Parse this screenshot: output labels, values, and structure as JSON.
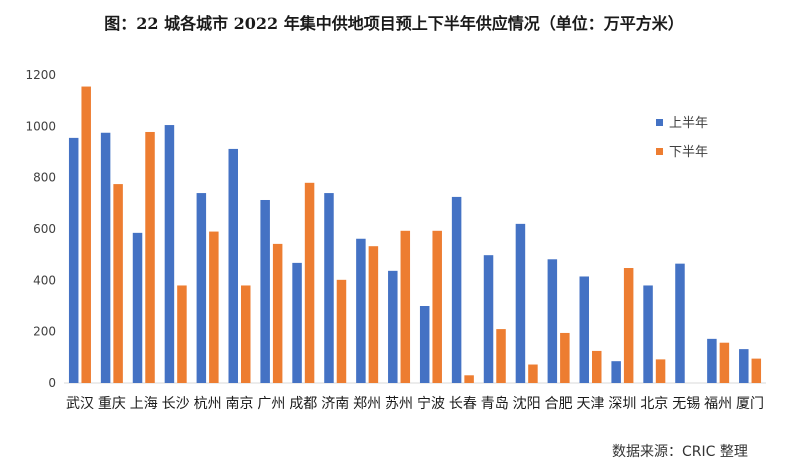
{
  "chart_data": {
    "type": "bar",
    "title": "图：22 城各城市 2022 年集中供地项目预上下半年供应情况（单位：万平方米）",
    "categories": [
      "武汉",
      "重庆",
      "上海",
      "长沙",
      "杭州",
      "南京",
      "广州",
      "成都",
      "济南",
      "郑州",
      "苏州",
      "宁波",
      "长春",
      "青岛",
      "沈阳",
      "合肥",
      "天津",
      "深圳",
      "北京",
      "无锡",
      "福州",
      "厦门"
    ],
    "series": [
      {
        "name": "上半年",
        "color": "#4472C4",
        "values": [
          955,
          975,
          585,
          1005,
          740,
          912,
          713,
          468,
          740,
          562,
          437,
          300,
          725,
          498,
          620,
          482,
          415,
          85,
          380,
          465,
          172,
          132
        ]
      },
      {
        "name": "下半年",
        "color": "#ED7D31",
        "values": [
          1155,
          775,
          978,
          380,
          590,
          380,
          542,
          780,
          402,
          533,
          593,
          593,
          30,
          210,
          72,
          195,
          125,
          448,
          92,
          0,
          157,
          95
        ]
      }
    ],
    "ylim": [
      0,
      1200
    ],
    "yticks": [
      0,
      200,
      400,
      600,
      800,
      1000,
      1200
    ],
    "legend_position": "top-right",
    "grid": false
  },
  "source_text": "数据来源：CRIC 整理"
}
